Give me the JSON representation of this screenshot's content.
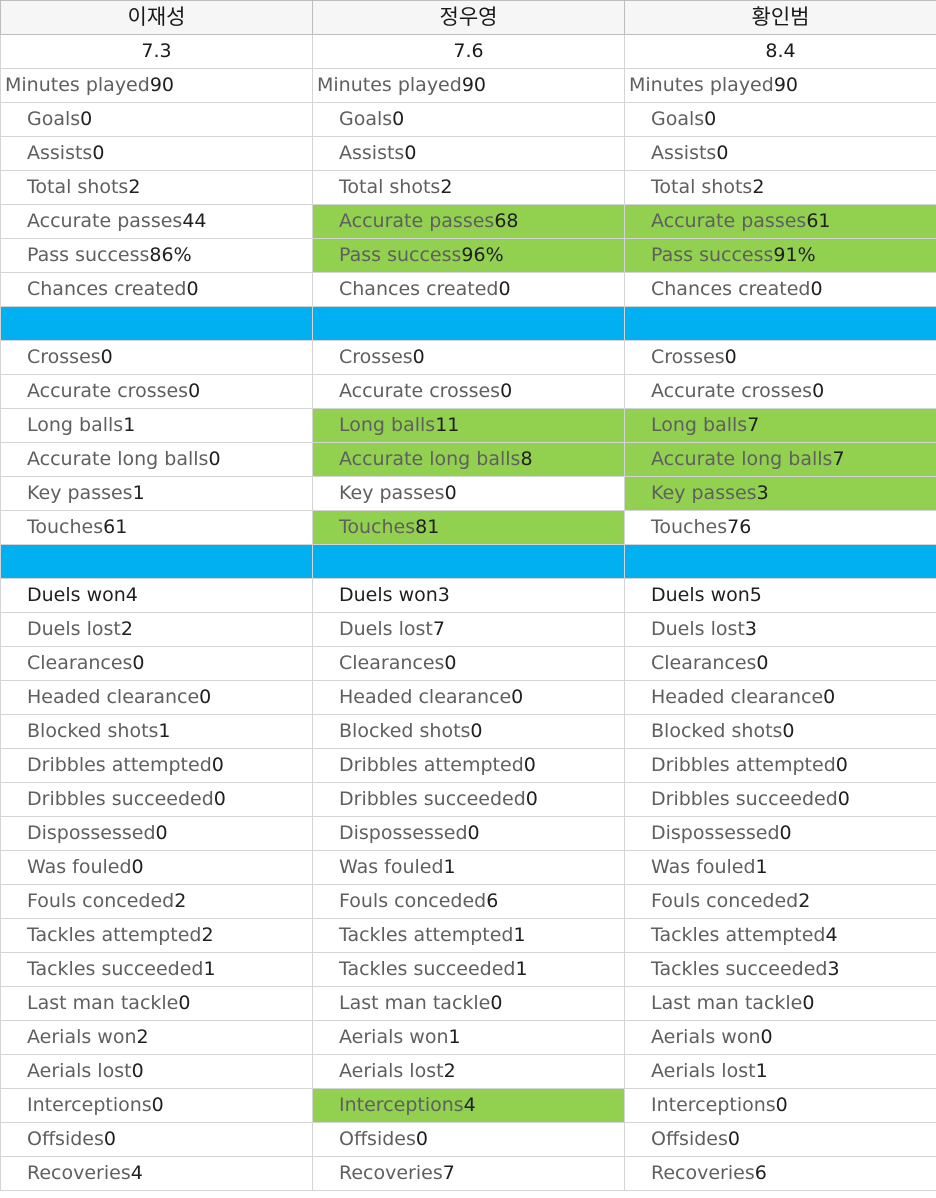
{
  "players": [
    "이재성",
    "정우영",
    "황인범"
  ],
  "ratings": [
    "7.3",
    "7.6",
    "8.4"
  ],
  "colors": {
    "highlight": "#92d050",
    "separator": "#00b0f0",
    "grid": "#d4d4d4"
  },
  "sections": [
    [
      {
        "id": "minutes-played",
        "label": "Minutes played",
        "values": [
          "90",
          "90",
          "90"
        ],
        "highlight": [
          false,
          false,
          false
        ]
      },
      {
        "id": "goals",
        "label": "Goals",
        "values": [
          "0",
          "0",
          "0"
        ],
        "highlight": [
          false,
          false,
          false
        ]
      },
      {
        "id": "assists",
        "label": "Assists",
        "values": [
          "0",
          "0",
          "0"
        ],
        "highlight": [
          false,
          false,
          false
        ]
      },
      {
        "id": "total-shots",
        "label": "Total shots",
        "values": [
          "2",
          "2",
          "2"
        ],
        "highlight": [
          false,
          false,
          false
        ]
      },
      {
        "id": "accurate-passes",
        "label": "Accurate passes",
        "values": [
          "44",
          "68",
          "61"
        ],
        "highlight": [
          false,
          true,
          true
        ]
      },
      {
        "id": "pass-success",
        "label": "Pass success",
        "values": [
          "86%",
          "96%",
          "91%"
        ],
        "highlight": [
          false,
          true,
          true
        ]
      },
      {
        "id": "chances-created",
        "label": "Chances created",
        "values": [
          "0",
          "0",
          "0"
        ],
        "highlight": [
          false,
          false,
          false
        ]
      }
    ],
    [
      {
        "id": "crosses",
        "label": "Crosses",
        "values": [
          "0",
          "0",
          "0"
        ],
        "highlight": [
          false,
          false,
          false
        ]
      },
      {
        "id": "accurate-crosses",
        "label": "Accurate crosses",
        "values": [
          "0",
          "0",
          "0"
        ],
        "highlight": [
          false,
          false,
          false
        ]
      },
      {
        "id": "long-balls",
        "label": "Long balls",
        "values": [
          "1",
          "11",
          "7"
        ],
        "highlight": [
          false,
          true,
          true
        ]
      },
      {
        "id": "accurate-long-balls",
        "label": "Accurate long balls",
        "values": [
          "0",
          "8",
          "7"
        ],
        "highlight": [
          false,
          true,
          true
        ]
      },
      {
        "id": "key-passes",
        "label": "Key passes",
        "values": [
          "1",
          "0",
          "3"
        ],
        "highlight": [
          false,
          false,
          true
        ]
      },
      {
        "id": "touches",
        "label": "Touches",
        "values": [
          "61",
          "81",
          "76"
        ],
        "highlight": [
          false,
          true,
          false
        ]
      }
    ],
    [
      {
        "id": "duels-won",
        "label": "Duels won",
        "values": [
          "4",
          "3",
          "5"
        ],
        "highlight": [
          false,
          false,
          false
        ],
        "dark": true
      },
      {
        "id": "duels-lost",
        "label": "Duels lost",
        "values": [
          "2",
          "7",
          "3"
        ],
        "highlight": [
          false,
          false,
          false
        ]
      },
      {
        "id": "clearances",
        "label": "Clearances",
        "values": [
          "0",
          "0",
          "0"
        ],
        "highlight": [
          false,
          false,
          false
        ]
      },
      {
        "id": "headed-clearance",
        "label": "Headed clearance",
        "values": [
          "0",
          "0",
          "0"
        ],
        "highlight": [
          false,
          false,
          false
        ]
      },
      {
        "id": "blocked-shots",
        "label": "Blocked shots",
        "values": [
          "1",
          "0",
          "0"
        ],
        "highlight": [
          false,
          false,
          false
        ]
      },
      {
        "id": "dribbles-attempted",
        "label": "Dribbles attempted",
        "values": [
          "0",
          "0",
          "0"
        ],
        "highlight": [
          false,
          false,
          false
        ]
      },
      {
        "id": "dribbles-succeeded",
        "label": "Dribbles succeeded",
        "values": [
          "0",
          "0",
          "0"
        ],
        "highlight": [
          false,
          false,
          false
        ]
      },
      {
        "id": "dispossessed",
        "label": "Dispossessed",
        "values": [
          "0",
          "0",
          "0"
        ],
        "highlight": [
          false,
          false,
          false
        ]
      },
      {
        "id": "was-fouled",
        "label": "Was fouled",
        "values": [
          "0",
          "1",
          "1"
        ],
        "highlight": [
          false,
          false,
          false
        ]
      },
      {
        "id": "fouls-conceded",
        "label": "Fouls conceded",
        "values": [
          "2",
          "6",
          "2"
        ],
        "highlight": [
          false,
          false,
          false
        ]
      },
      {
        "id": "tackles-attempted",
        "label": "Tackles attempted",
        "values": [
          "2",
          "1",
          "4"
        ],
        "highlight": [
          false,
          false,
          false
        ]
      },
      {
        "id": "tackles-succeeded",
        "label": "Tackles succeeded",
        "values": [
          "1",
          "1",
          "3"
        ],
        "highlight": [
          false,
          false,
          false
        ]
      },
      {
        "id": "last-man-tackle",
        "label": "Last man tackle",
        "values": [
          "0",
          "0",
          "0"
        ],
        "highlight": [
          false,
          false,
          false
        ]
      },
      {
        "id": "aerials-won",
        "label": "Aerials won",
        "values": [
          "2",
          "1",
          "0"
        ],
        "highlight": [
          false,
          false,
          false
        ]
      },
      {
        "id": "aerials-lost",
        "label": "Aerials lost",
        "values": [
          "0",
          "2",
          "1"
        ],
        "highlight": [
          false,
          false,
          false
        ]
      },
      {
        "id": "interceptions",
        "label": "Interceptions",
        "values": [
          "0",
          "4",
          "0"
        ],
        "highlight": [
          false,
          true,
          false
        ]
      },
      {
        "id": "offsides",
        "label": "Offsides",
        "values": [
          "0",
          "0",
          "0"
        ],
        "highlight": [
          false,
          false,
          false
        ]
      },
      {
        "id": "recoveries",
        "label": "Recoveries",
        "values": [
          "4",
          "7",
          "6"
        ],
        "highlight": [
          false,
          false,
          false
        ]
      }
    ]
  ]
}
